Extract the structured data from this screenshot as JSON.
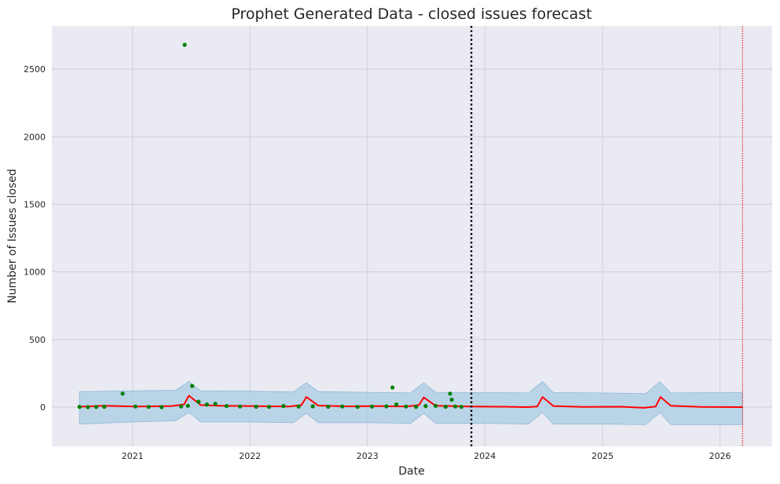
{
  "chart_data": {
    "type": "line",
    "title": "Prophet Generated Data - closed issues forecast",
    "xlabel": "Date",
    "ylabel": "Number of Issues closed",
    "x_type": "date",
    "xlim": [
      "2020-04-25",
      "2026-06-12"
    ],
    "ylim": [
      -290,
      2820
    ],
    "x_ticks": [
      "2021",
      "2022",
      "2023",
      "2024",
      "2025",
      "2026"
    ],
    "y_ticks": [
      0,
      500,
      1000,
      1500,
      2000,
      2500
    ],
    "grid": true,
    "legend": "none",
    "forecast_start": "2023-11-20",
    "forecast_end": "2026-03-12",
    "colors": {
      "plot_bg": "#eaeaf2",
      "grid": "#cfcfd8",
      "interval_fill": "#a9cce3",
      "interval_edge": "#8fbad8",
      "forecast": "#ff0000",
      "actual": "#008000",
      "cutoff_line": "#000000",
      "end_line": "#ff0000"
    },
    "series": [
      {
        "role": "forecast",
        "x": [
          "2020-07-20",
          "2020-10-01",
          "2021-01-15",
          "2021-05-01",
          "2021-06-10",
          "2021-06-25",
          "2021-08-01",
          "2021-10-01",
          "2022-01-01",
          "2022-05-01",
          "2022-06-10",
          "2022-06-25",
          "2022-08-01",
          "2022-11-01",
          "2023-02-01",
          "2023-05-01",
          "2023-06-10",
          "2023-06-25",
          "2023-08-01",
          "2023-11-20",
          "2024-03-01",
          "2024-05-10",
          "2024-06-12",
          "2024-06-28",
          "2024-08-01",
          "2024-11-01",
          "2025-03-01",
          "2025-05-10",
          "2025-06-15",
          "2025-06-30",
          "2025-08-01",
          "2025-11-01",
          "2026-03-12"
        ],
        "values": [
          3,
          10,
          5,
          8,
          20,
          85,
          15,
          10,
          8,
          5,
          15,
          75,
          12,
          6,
          8,
          5,
          15,
          72,
          10,
          5,
          3,
          0,
          5,
          75,
          8,
          2,
          3,
          -5,
          5,
          75,
          10,
          2,
          0
        ]
      },
      {
        "role": "interval",
        "x": [
          "2020-07-20",
          "2021-01-01",
          "2021-05-15",
          "2021-06-25",
          "2021-08-01",
          "2022-01-01",
          "2022-05-15",
          "2022-06-25",
          "2022-08-01",
          "2023-01-01",
          "2023-05-15",
          "2023-06-25",
          "2023-08-01",
          "2024-01-01",
          "2024-05-15",
          "2024-06-28",
          "2024-08-01",
          "2025-01-01",
          "2025-05-15",
          "2025-06-28",
          "2025-08-01",
          "2026-03-12"
        ],
        "upper": [
          115,
          120,
          125,
          190,
          120,
          118,
          112,
          180,
          115,
          110,
          105,
          180,
          110,
          108,
          105,
          190,
          108,
          105,
          100,
          188,
          105,
          108
        ],
        "lower": [
          -125,
          -110,
          -100,
          -40,
          -110,
          -110,
          -115,
          -45,
          -115,
          -115,
          -120,
          -45,
          -120,
          -120,
          -125,
          -40,
          -125,
          -125,
          -130,
          -40,
          -130,
          -130
        ]
      },
      {
        "role": "actual",
        "x": [
          "2020-07-20",
          "2020-08-15",
          "2020-09-10",
          "2020-10-05",
          "2020-12-01",
          "2021-01-10",
          "2021-02-20",
          "2021-04-01",
          "2021-06-01",
          "2021-06-12",
          "2021-06-22",
          "2021-07-05",
          "2021-07-25",
          "2021-08-20",
          "2021-09-15",
          "2021-10-20",
          "2021-12-01",
          "2022-01-20",
          "2022-03-01",
          "2022-04-15",
          "2022-06-01",
          "2022-07-15",
          "2022-09-01",
          "2022-10-15",
          "2022-12-01",
          "2023-01-15",
          "2023-03-01",
          "2023-03-20",
          "2023-04-01",
          "2023-05-01",
          "2023-06-01",
          "2023-07-01",
          "2023-08-01",
          "2023-09-01",
          "2023-09-15",
          "2023-09-20",
          "2023-10-01",
          "2023-10-20"
        ],
        "values": [
          2,
          0,
          1,
          3,
          100,
          5,
          2,
          0,
          5,
          2680,
          10,
          157,
          40,
          20,
          25,
          8,
          5,
          3,
          2,
          8,
          4,
          6,
          3,
          5,
          2,
          4,
          6,
          145,
          20,
          5,
          2,
          8,
          10,
          3,
          100,
          55,
          5,
          2
        ]
      }
    ]
  }
}
